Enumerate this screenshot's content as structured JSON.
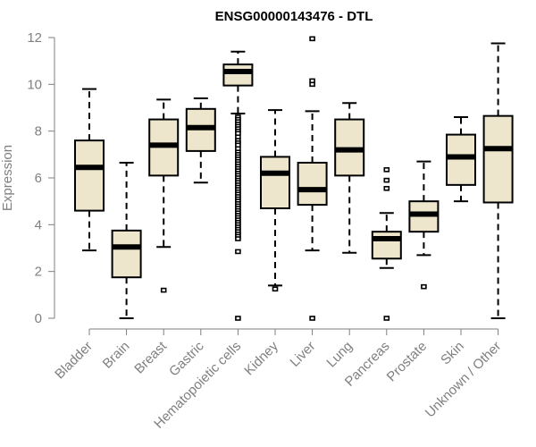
{
  "chart_data": {
    "type": "box",
    "title": "ENSG00000143476 - DTL",
    "xlabel": "",
    "ylabel": "Expression",
    "ylim": [
      0,
      12
    ],
    "yticks": [
      0,
      2,
      4,
      6,
      8,
      10,
      12
    ],
    "grid": false,
    "colors": {
      "box_fill": "#ede6cd",
      "stroke": "#000000",
      "axis": "#7f7f7f"
    },
    "categories": [
      "Bladder",
      "Brain",
      "Breast",
      "Gastric",
      "Hematopoietic cells",
      "Kidney",
      "Liver",
      "Lung",
      "Pancreas",
      "Prostate",
      "Skin",
      "Unknown / Other"
    ],
    "series": [
      {
        "name": "Bladder",
        "whisker_low": 2.9,
        "q1": 4.6,
        "median": 6.45,
        "q3": 7.6,
        "whisker_high": 9.8,
        "outliers": []
      },
      {
        "name": "Brain",
        "whisker_low": 0.0,
        "q1": 1.75,
        "median": 3.05,
        "q3": 3.75,
        "whisker_high": 6.65,
        "outliers": []
      },
      {
        "name": "Breast",
        "whisker_low": 3.05,
        "q1": 6.1,
        "median": 7.4,
        "q3": 8.5,
        "whisker_high": 9.35,
        "outliers": [
          1.2
        ]
      },
      {
        "name": "Gastric",
        "whisker_low": 5.8,
        "q1": 7.15,
        "median": 8.15,
        "q3": 8.95,
        "whisker_high": 9.4,
        "outliers": []
      },
      {
        "name": "Hematopoietic cells",
        "whisker_low": 8.75,
        "q1": 9.95,
        "median": 10.55,
        "q3": 10.85,
        "whisker_high": 11.4,
        "outliers": [
          8.6,
          8.5,
          8.4,
          8.3,
          8.2,
          8.1,
          8.0,
          7.9,
          7.75,
          7.6,
          7.5,
          7.4,
          7.25,
          7.1,
          7.0,
          6.9,
          6.8,
          6.7,
          6.6,
          6.5,
          6.4,
          6.3,
          6.2,
          6.1,
          6.0,
          5.9,
          5.8,
          5.7,
          5.6,
          5.5,
          5.4,
          5.3,
          5.2,
          5.1,
          5.0,
          4.9,
          4.8,
          4.7,
          4.6,
          4.5,
          4.4,
          4.3,
          4.2,
          4.1,
          4.0,
          3.9,
          3.8,
          3.7,
          3.6,
          3.5,
          3.4,
          2.85,
          0.0
        ]
      },
      {
        "name": "Kidney",
        "whisker_low": 1.4,
        "q1": 4.7,
        "median": 6.2,
        "q3": 6.9,
        "whisker_high": 8.9,
        "outliers": [
          1.25
        ]
      },
      {
        "name": "Liver",
        "whisker_low": 2.9,
        "q1": 4.85,
        "median": 5.5,
        "q3": 6.65,
        "whisker_high": 8.85,
        "outliers": [
          11.95,
          10.15,
          10.0,
          0.0
        ]
      },
      {
        "name": "Lung",
        "whisker_low": 2.8,
        "q1": 6.1,
        "median": 7.2,
        "q3": 8.5,
        "whisker_high": 9.2,
        "outliers": []
      },
      {
        "name": "Pancreas",
        "whisker_low": 2.15,
        "q1": 2.55,
        "median": 3.4,
        "q3": 3.7,
        "whisker_high": 4.5,
        "outliers": [
          6.35,
          5.9,
          5.55,
          0.0
        ]
      },
      {
        "name": "Prostate",
        "whisker_low": 2.7,
        "q1": 3.7,
        "median": 4.45,
        "q3": 5.0,
        "whisker_high": 6.7,
        "outliers": [
          1.35
        ]
      },
      {
        "name": "Skin",
        "whisker_low": 5.0,
        "q1": 5.7,
        "median": 6.9,
        "q3": 7.85,
        "whisker_high": 8.6,
        "outliers": []
      },
      {
        "name": "Unknown / Other",
        "whisker_low": 0.0,
        "q1": 4.95,
        "median": 7.25,
        "q3": 8.65,
        "whisker_high": 11.75,
        "outliers": []
      }
    ]
  }
}
